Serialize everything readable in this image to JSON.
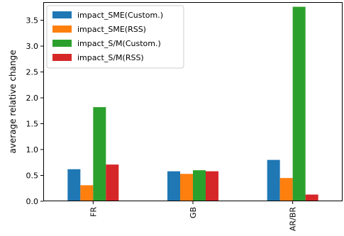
{
  "chart_data": {
    "type": "bar",
    "title": "",
    "xlabel": "",
    "ylabel": "average relative change",
    "ylim": [
      0,
      3.85
    ],
    "grid": false,
    "legend_placement": "top-left",
    "yticks": [
      0.0,
      0.5,
      1.0,
      1.5,
      2.0,
      2.5,
      3.0,
      3.5
    ],
    "ytick_labels": [
      "0.0",
      "0.5",
      "1.0",
      "1.5",
      "2.0",
      "2.5",
      "3.0",
      "3.5"
    ],
    "categories": [
      "FR",
      "GB",
      "AR/BR"
    ],
    "series": [
      {
        "name": "impact_SME(Custom.)",
        "color": "#1f77b4",
        "values": [
          0.62,
          0.58,
          0.8
        ]
      },
      {
        "name": "impact_SME(RSS)",
        "color": "#ff7f0e",
        "values": [
          0.31,
          0.53,
          0.45
        ]
      },
      {
        "name": "impact_S/M(Custom.)",
        "color": "#2ca02c",
        "values": [
          1.82,
          0.6,
          3.76
        ]
      },
      {
        "name": "impact_S/M(RSS)",
        "color": "#d62728",
        "values": [
          0.71,
          0.58,
          0.13
        ]
      }
    ]
  }
}
